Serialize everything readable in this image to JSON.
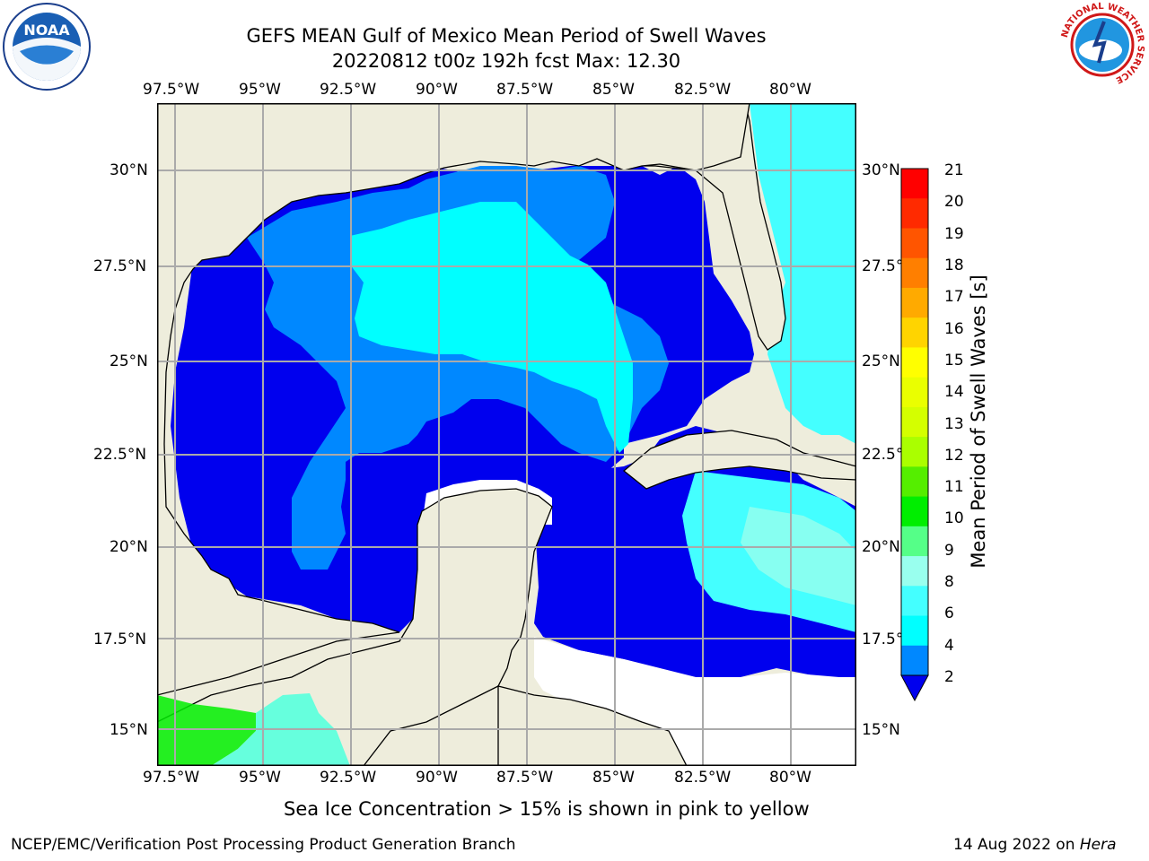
{
  "title": {
    "line1": "GEFS MEAN Gulf of Mexico Mean Period of Swell Waves",
    "line2": "20220812 t00z 192h fcst   Max: 12.30"
  },
  "map": {
    "lon_labels": [
      "97.5°W",
      "95°W",
      "92.5°W",
      "90°W",
      "87.5°W",
      "85°W",
      "82.5°W",
      "80°W"
    ],
    "lat_labels": [
      "30°N",
      "27.5°N",
      "25°N",
      "22.5°N",
      "20°N",
      "17.5°N",
      "15°N"
    ],
    "land_color": "#eeeddc",
    "water_missing_color": "#ffffff"
  },
  "colorbar": {
    "label": "Mean Period of Swell Waves [s]",
    "ticks": [
      "21",
      "20",
      "19",
      "18",
      "17",
      "16",
      "15",
      "14",
      "13",
      "12",
      "11",
      "10",
      "9",
      "8",
      "6",
      "4",
      "2"
    ],
    "colors": [
      "#ff0000",
      "#ff2a00",
      "#ff5500",
      "#ff7f00",
      "#ffaa00",
      "#ffd400",
      "#ffff00",
      "#eaff00",
      "#d4ff00",
      "#aaff00",
      "#55ee00",
      "#00ee00",
      "#55ff88",
      "#99ffee",
      "#44ffff",
      "#00ffff",
      "#0088ff"
    ],
    "extend_color": "#0000ee"
  },
  "note": "Sea Ice Concentration > 15% is shown in pink to yellow",
  "footer": {
    "left": "NCEP/EMC/Verification Post Processing Product Generation Branch",
    "right_date": "14 Aug 2022 on ",
    "right_host": "Hera"
  },
  "logos": {
    "noaa_text": "NOAA",
    "nws_text": "NATIONAL WEATHER SERVICE"
  }
}
